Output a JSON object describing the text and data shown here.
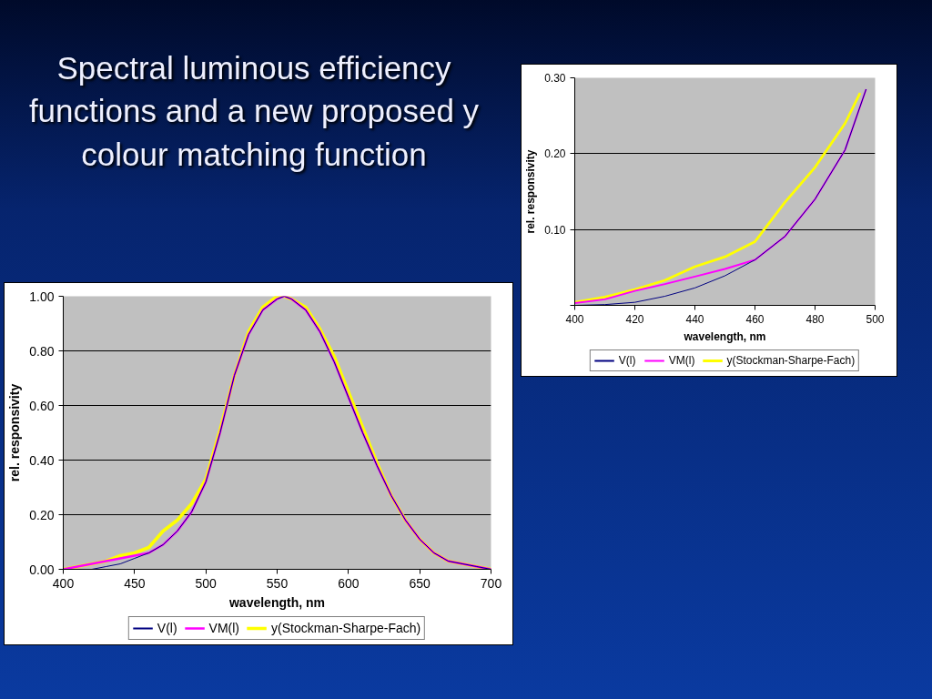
{
  "chart_data": [
    {
      "type": "line",
      "title": "Spectral luminous efficiency functions and a new proposed y colour matching function",
      "xlabel": "wavelength, nm",
      "ylabel": "rel. responsivity",
      "x": [
        400,
        410,
        420,
        430,
        440,
        450,
        460,
        470,
        480,
        490,
        500,
        510,
        520,
        530,
        540,
        550,
        555,
        560,
        570,
        580,
        590,
        600,
        610,
        620,
        630,
        640,
        650,
        660,
        670,
        680,
        690,
        700
      ],
      "series": [
        {
          "name": "V(l)",
          "color": "#000080",
          "values": [
            0.0,
            0.0,
            0.0,
            0.01,
            0.02,
            0.04,
            0.06,
            0.09,
            0.14,
            0.21,
            0.32,
            0.5,
            0.71,
            0.86,
            0.95,
            0.99,
            1.0,
            0.99,
            0.95,
            0.87,
            0.76,
            0.63,
            0.5,
            0.38,
            0.27,
            0.18,
            0.11,
            0.06,
            0.03,
            0.02,
            0.01,
            0.0
          ]
        },
        {
          "name": "VM(l)",
          "color": "#ff00ff",
          "values": [
            0.0,
            0.01,
            0.02,
            0.03,
            0.04,
            0.05,
            0.06,
            0.09,
            0.14,
            0.21,
            0.32,
            0.5,
            0.71,
            0.86,
            0.95,
            0.99,
            1.0,
            0.99,
            0.95,
            0.87,
            0.76,
            0.63,
            0.5,
            0.38,
            0.27,
            0.18,
            0.11,
            0.06,
            0.03,
            0.02,
            0.01,
            0.0
          ]
        },
        {
          "name": "y(Stockman-Sharpe-Fach)",
          "color": "#ffff00",
          "values": [
            0.0,
            0.01,
            0.02,
            0.03,
            0.05,
            0.06,
            0.08,
            0.14,
            0.18,
            0.24,
            0.33,
            0.51,
            0.71,
            0.87,
            0.96,
            1.0,
            1.0,
            0.99,
            0.96,
            0.88,
            0.78,
            0.65,
            0.52,
            0.39,
            0.27,
            0.18,
            0.11,
            0.06,
            0.03,
            0.02,
            0.01,
            0.0
          ]
        }
      ],
      "xlim": [
        400,
        700
      ],
      "xticks": [
        400,
        450,
        500,
        550,
        600,
        650,
        700
      ],
      "ylim": [
        0,
        1
      ],
      "yticks": [
        {
          "value": 0,
          "label": "0.00"
        },
        {
          "value": 0.2,
          "label": "0.20"
        },
        {
          "value": 0.4,
          "label": "0.40"
        },
        {
          "value": 0.6,
          "label": "0.60"
        },
        {
          "value": 0.8,
          "label": "0.80"
        },
        {
          "value": 1,
          "label": "1.00"
        }
      ],
      "grid": "y",
      "legend": "bottom"
    },
    {
      "type": "line",
      "xlabel": "wavelength, nm",
      "ylabel": "rel. responsivity",
      "series": [
        {
          "name": "V(l)",
          "color": "#000080",
          "x": [
            400,
            410,
            420,
            430,
            440,
            450,
            460,
            470,
            480,
            490,
            497
          ],
          "values": [
            0.0,
            0.001,
            0.004,
            0.012,
            0.023,
            0.039,
            0.06,
            0.091,
            0.14,
            0.205,
            0.285
          ]
        },
        {
          "name": "VM(l)",
          "color": "#ff00ff",
          "x": [
            400,
            410,
            420,
            430,
            440,
            450,
            460,
            470,
            480,
            490,
            497
          ],
          "values": [
            0.003,
            0.008,
            0.019,
            0.028,
            0.038,
            0.048,
            0.06,
            0.091,
            0.14,
            0.205,
            0.285
          ]
        },
        {
          "name": "y(Stockman-Sharpe-Fach)",
          "color": "#ffff00",
          "x": [
            400,
            410,
            420,
            430,
            440,
            450,
            460,
            470,
            480,
            490,
            495
          ],
          "values": [
            0.004,
            0.011,
            0.021,
            0.033,
            0.051,
            0.064,
            0.084,
            0.136,
            0.182,
            0.24,
            0.28
          ]
        }
      ],
      "xlim": [
        400,
        500
      ],
      "xticks": [
        400,
        420,
        440,
        460,
        480,
        500
      ],
      "ylim": [
        0,
        0.3
      ],
      "yticks": [
        {
          "value": 0,
          "label": null
        },
        {
          "value": 0.1,
          "label": "0.10"
        },
        {
          "value": 0.2,
          "label": "0.20"
        },
        {
          "value": 0.3,
          "label": "0.30"
        }
      ],
      "grid": "y",
      "legend": "bottom"
    }
  ]
}
